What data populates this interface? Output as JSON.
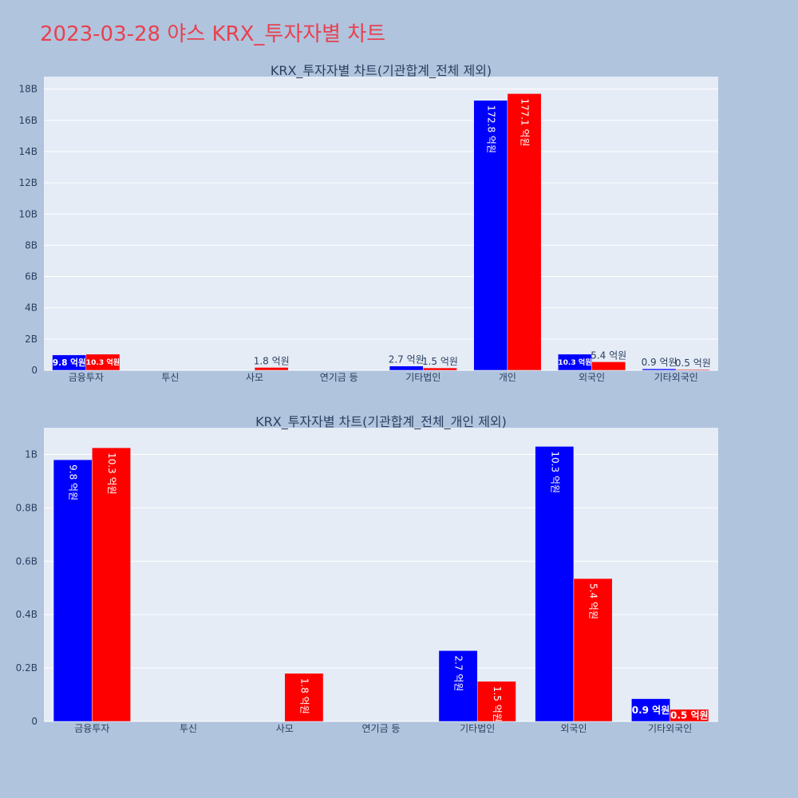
{
  "page_title": "2023-03-28 야스 KRX_투자자별 차트",
  "colors": {
    "buy": "#0000ff",
    "sell": "#ff0000",
    "plot_bg": "#e5ecf6",
    "page_bg": "#b0c4de",
    "title": "#e8414f"
  },
  "chart_data": [
    {
      "type": "bar",
      "title": "KRX_투자자별 차트(기관합계_전체 제외)",
      "categories": [
        "금융투자",
        "투신",
        "사모",
        "연기금 등",
        "기타법인",
        "개인",
        "외국인",
        "기타외국인"
      ],
      "series": [
        {
          "name": "buy",
          "values": [
            0.98,
            0,
            0,
            0,
            0.27,
            17.28,
            1.03,
            0.09
          ],
          "labels": [
            "9.8 억원",
            "",
            "",
            "",
            "2.7 억원",
            "172.8 억원",
            "10.3 억원",
            "0.9 억원"
          ]
        },
        {
          "name": "sell",
          "values": [
            1.03,
            0,
            0.18,
            0,
            0.15,
            17.71,
            0.54,
            0.05
          ],
          "labels": [
            "10.3 억원",
            "",
            "1.8 억원",
            "",
            "1.5 억원",
            "177.1 억원",
            "5.4 억원",
            "0.5 억원"
          ]
        }
      ],
      "yunit": "B",
      "ylim": [
        0,
        18.8
      ],
      "yticks": [
        0,
        2,
        4,
        6,
        8,
        10,
        12,
        14,
        16,
        18
      ],
      "ytick_labels": [
        "0",
        "2B",
        "4B",
        "6B",
        "8B",
        "10B",
        "12B",
        "14B",
        "16B",
        "18B"
      ]
    },
    {
      "type": "bar",
      "title": "KRX_투자자별 차트(기관합계_전체_개인 제외)",
      "categories": [
        "금융투자",
        "투신",
        "사모",
        "연기금 등",
        "기타법인",
        "외국인",
        "기타외국인"
      ],
      "series": [
        {
          "name": "buy",
          "values": [
            0.98,
            0,
            0,
            0,
            0.265,
            1.03,
            0.085
          ],
          "labels": [
            "9.8 억원",
            "",
            "",
            "",
            "2.7 억원",
            "10.3 억원",
            "0.9 억원"
          ]
        },
        {
          "name": "sell",
          "values": [
            1.025,
            0,
            0.18,
            0,
            0.15,
            0.535,
            0.045
          ],
          "labels": [
            "10.3 억원",
            "",
            "1.8 억원",
            "",
            "1.5 억원",
            "5.4 억원",
            "0.5 억원"
          ]
        }
      ],
      "yunit": "B",
      "ylim": [
        0,
        1.1
      ],
      "yticks": [
        0,
        0.2,
        0.4,
        0.6,
        0.8,
        1
      ],
      "ytick_labels": [
        "0",
        "0.2B",
        "0.4B",
        "0.6B",
        "0.8B",
        "1B"
      ]
    }
  ]
}
